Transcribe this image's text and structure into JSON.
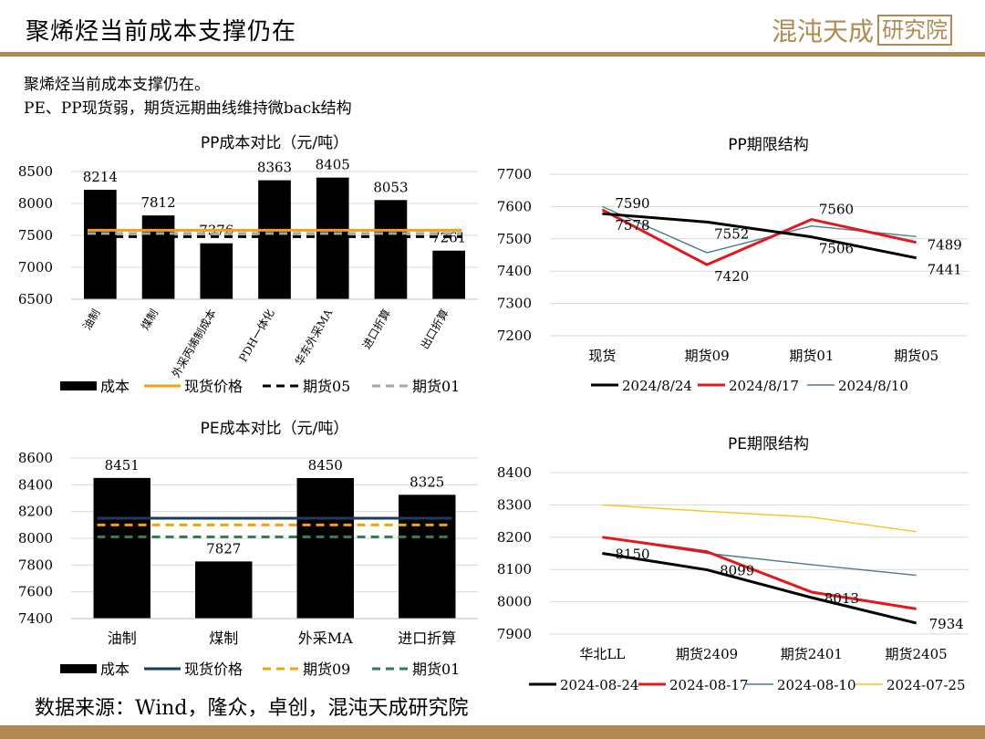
{
  "header": {
    "title": "聚烯烃当前成本支撑仍在",
    "logo_text": "混沌天成",
    "logo_box_text": "研究院"
  },
  "summary": {
    "line1": "聚烯烃当前成本支撑仍在。",
    "line2": "PE、PP现货弱，期货远期曲线维持微back结构"
  },
  "source": "数据来源：Wind，隆众，卓创，混沌天成研究院",
  "colors": {
    "brand": "#b08a52"
  },
  "chart_data": [
    {
      "id": "pp-cost",
      "type": "bar",
      "title": "PP成本对比（元/吨）",
      "categories": [
        "油制",
        "煤制",
        "外采丙烯制成本",
        "PDH一体化",
        "华东外采MA",
        "进口折算",
        "出口折算"
      ],
      "series": [
        {
          "name": "成本",
          "values": [
            8214,
            7812,
            7376,
            8363,
            8405,
            8053,
            7261
          ]
        }
      ],
      "reference_lines": [
        {
          "name": "现货价格",
          "value": 7580,
          "color": "#f0a30a",
          "dash": "solid"
        },
        {
          "name": "期货05",
          "value": 7480,
          "color": "#000000",
          "dash": "dashed"
        },
        {
          "name": "期货01",
          "value": 7530,
          "color": "#a6a6a6",
          "dash": "dashed"
        }
      ],
      "ylim": [
        6500,
        8500
      ],
      "yticks": [
        6500,
        7000,
        7500,
        8000,
        8500
      ]
    },
    {
      "id": "pp-term",
      "type": "line",
      "title": "PP期限结构",
      "categories": [
        "现货",
        "期货09",
        "期货01",
        "期货05"
      ],
      "series": [
        {
          "name": "2024/8/24",
          "values": [
            7578,
            7552,
            7506,
            7441
          ],
          "color": "#000000",
          "width": 3
        },
        {
          "name": "2024/8/17",
          "values": [
            7590,
            7420,
            7560,
            7489
          ],
          "color": "#e3181b",
          "width": 3
        },
        {
          "name": "2024/8/10",
          "values": [
            7600,
            7457,
            7540,
            7507
          ],
          "color": "#4a7a96",
          "width": 1.4
        }
      ],
      "labels": [
        {
          "text": "7590",
          "series": 1,
          "point": 0
        },
        {
          "text": "7578",
          "series": 0,
          "point": 0
        },
        {
          "text": "7552",
          "series": 0,
          "point": 1
        },
        {
          "text": "7420",
          "series": 1,
          "point": 1
        },
        {
          "text": "7560",
          "series": 1,
          "point": 2
        },
        {
          "text": "7506",
          "series": 0,
          "point": 2
        },
        {
          "text": "7489",
          "series": 1,
          "point": 3
        },
        {
          "text": "7441",
          "series": 0,
          "point": 3
        }
      ],
      "ylim": [
        7200,
        7700
      ],
      "yticks": [
        7200,
        7300,
        7400,
        7500,
        7600,
        7700
      ]
    },
    {
      "id": "pe-cost",
      "type": "bar",
      "title": "PE成本对比（元/吨）",
      "categories": [
        "油制",
        "煤制",
        "外采MA",
        "进口折算"
      ],
      "series": [
        {
          "name": "成本",
          "values": [
            8451,
            7827,
            8450,
            8325
          ]
        }
      ],
      "reference_lines": [
        {
          "name": "现货价格",
          "value": 8150,
          "color": "#1f3a5a",
          "dash": "solid"
        },
        {
          "name": "期货09",
          "value": 8100,
          "color": "#f0a30a",
          "dash": "dashed"
        },
        {
          "name": "期货01",
          "value": 8010,
          "color": "#2e7d5b",
          "dash": "dashed"
        }
      ],
      "ylim": [
        7400,
        8600
      ],
      "yticks": [
        7400,
        7600,
        7800,
        8000,
        8200,
        8400,
        8600
      ]
    },
    {
      "id": "pe-term",
      "type": "line",
      "title": "PE期限结构",
      "categories": [
        "华北LL",
        "期货2409",
        "期货2401",
        "期货2405"
      ],
      "series": [
        {
          "name": "2024-08-24",
          "values": [
            8150,
            8099,
            8013,
            7934
          ],
          "color": "#000000",
          "width": 3
        },
        {
          "name": "2024-08-17",
          "values": [
            8200,
            8155,
            8030,
            7978
          ],
          "color": "#e3181b",
          "width": 3
        },
        {
          "name": "2024-08-10",
          "values": [
            8200,
            8150,
            8115,
            8082
          ],
          "color": "#4a7a96",
          "width": 1.4
        },
        {
          "name": "2024-07-25",
          "values": [
            8300,
            8280,
            8262,
            8217
          ],
          "color": "#f5c518",
          "width": 1.4
        }
      ],
      "labels": [
        {
          "text": "8150",
          "series": 0,
          "point": 0
        },
        {
          "text": "8099",
          "series": 0,
          "point": 1
        },
        {
          "text": "8013",
          "series": 0,
          "point": 2
        },
        {
          "text": "7934",
          "series": 0,
          "point": 3
        }
      ],
      "ylim": [
        7900,
        8400
      ],
      "yticks": [
        7900,
        8000,
        8100,
        8200,
        8300,
        8400
      ]
    }
  ]
}
